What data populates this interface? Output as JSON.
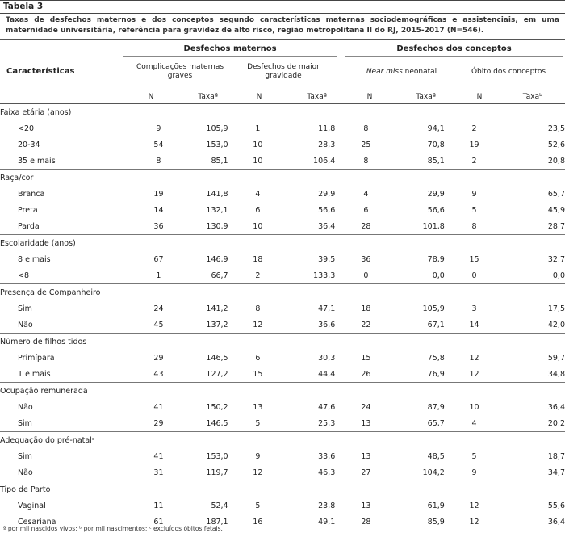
{
  "table": {
    "label": "Tabela 3",
    "caption": "Taxas de desfechos maternos e dos conceptos segundo características maternas sociodemográficas e assistenciais, em uma maternidade universitária, referência para gravidez de alto risco, região metropolitana II do RJ, 2015-2017 (N=546).",
    "header": {
      "characteristics": "Características",
      "group_maternal": "Desfechos maternos",
      "group_conceptus": "Desfechos dos conceptos",
      "col1": "Complicações maternas graves",
      "col2": "Desfechos de maior gravidade",
      "col3_italic": "Near miss",
      "col3_rest": " neonatal",
      "col4": "Óbito dos conceptos",
      "n": "N",
      "taxa_a": "Taxaª",
      "taxa_b": "Taxaᵇ"
    },
    "rows": [
      {
        "type": "group",
        "label": "Faixa etária (anos)"
      },
      {
        "type": "row",
        "label": "<20",
        "v": [
          "9",
          "105,9",
          "1",
          "11,8",
          "8",
          "94,1",
          "2",
          "23,5"
        ]
      },
      {
        "type": "row",
        "label": "20-34",
        "v": [
          "54",
          "153,0",
          "10",
          "28,3",
          "25",
          "70,8",
          "19",
          "52,6"
        ]
      },
      {
        "type": "row",
        "label": "35 e mais",
        "v": [
          "8",
          "85,1",
          "10",
          "106,4",
          "8",
          "85,1",
          "2",
          "20,8"
        ]
      },
      {
        "type": "group",
        "label": "Raça/cor"
      },
      {
        "type": "row",
        "label": "Branca",
        "v": [
          "19",
          "141,8",
          "4",
          "29,9",
          "4",
          "29,9",
          "9",
          "65,7"
        ]
      },
      {
        "type": "row",
        "label": "Preta",
        "v": [
          "14",
          "132,1",
          "6",
          "56,6",
          "6",
          "56,6",
          "5",
          "45,9"
        ]
      },
      {
        "type": "row",
        "label": "Parda",
        "v": [
          "36",
          "130,9",
          "10",
          "36,4",
          "28",
          "101,8",
          "8",
          "28,7"
        ]
      },
      {
        "type": "group",
        "label": "Escolaridade (anos)"
      },
      {
        "type": "row",
        "label": "8 e mais",
        "v": [
          "67",
          "146,9",
          "18",
          "39,5",
          "36",
          "78,9",
          "15",
          "32,7"
        ]
      },
      {
        "type": "row",
        "label": "<8",
        "v": [
          "1",
          "66,7",
          "2",
          "133,3",
          "0",
          "0,0",
          "0",
          "0,0"
        ]
      },
      {
        "type": "group",
        "label": "Presença de Companheiro"
      },
      {
        "type": "row",
        "label": "Sim",
        "v": [
          "24",
          "141,2",
          "8",
          "47,1",
          "18",
          "105,9",
          "3",
          "17,5"
        ]
      },
      {
        "type": "row",
        "label": "Não",
        "v": [
          "45",
          "137,2",
          "12",
          "36,6",
          "22",
          "67,1",
          "14",
          "42,0"
        ]
      },
      {
        "type": "group",
        "label": "Número de filhos tidos"
      },
      {
        "type": "row",
        "label": "Primípara",
        "v": [
          "29",
          "146,5",
          "6",
          "30,3",
          "15",
          "75,8",
          "12",
          "59,7"
        ]
      },
      {
        "type": "row",
        "label": "1 e mais",
        "v": [
          "43",
          "127,2",
          "15",
          "44,4",
          "26",
          "76,9",
          "12",
          "34,8"
        ]
      },
      {
        "type": "group",
        "label": "Ocupação remunerada"
      },
      {
        "type": "row",
        "label": "Não",
        "v": [
          "41",
          "150,2",
          "13",
          "47,6",
          "24",
          "87,9",
          "10",
          "36,4"
        ]
      },
      {
        "type": "row",
        "label": "Sim",
        "v": [
          "29",
          "146,5",
          "5",
          "25,3",
          "13",
          "65,7",
          "4",
          "20,2"
        ]
      },
      {
        "type": "group",
        "label": "Adequação do pré-natalᶜ"
      },
      {
        "type": "row",
        "label": "Sim",
        "v": [
          "41",
          "153,0",
          "9",
          "33,6",
          "13",
          "48,5",
          "5",
          "18,7"
        ]
      },
      {
        "type": "row",
        "label": "Não",
        "v": [
          "31",
          "119,7",
          "12",
          "46,3",
          "27",
          "104,2",
          "9",
          "34,7"
        ]
      },
      {
        "type": "group",
        "label": "Tipo de Parto"
      },
      {
        "type": "row",
        "label": "Vaginal",
        "v": [
          "11",
          "52,4",
          "5",
          "23,8",
          "13",
          "61,9",
          "12",
          "55,6"
        ]
      },
      {
        "type": "row",
        "label": "Cesariana",
        "v": [
          "61",
          "187,1",
          "16",
          "49,1",
          "28",
          "85,9",
          "12",
          "36,4"
        ]
      }
    ],
    "footnote": "ª por mil nascidos vivos; ᵇ por mil nascimentos; ᶜ excluídos óbitos fetais."
  }
}
